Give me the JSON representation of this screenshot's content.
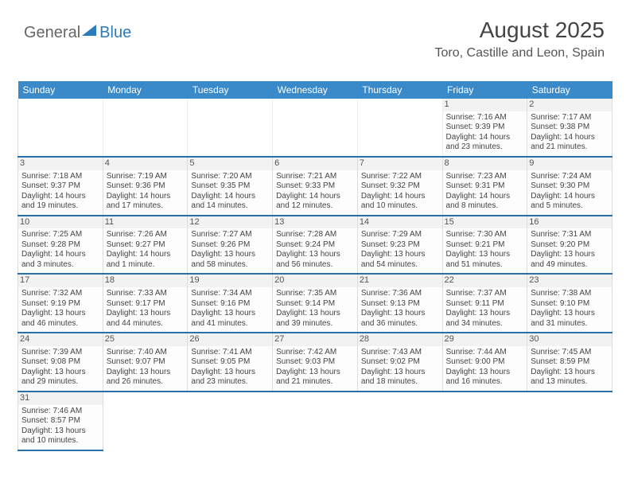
{
  "logo": {
    "text1": "General",
    "text2": "Blue"
  },
  "header": {
    "month": "August 2025",
    "location": "Toro, Castille and Leon, Spain"
  },
  "colors": {
    "header_bg": "#3a89c9",
    "header_text": "#ffffff",
    "row_divider": "#2b6fa8",
    "logo_blue": "#2b7bbf"
  },
  "weekdays": [
    "Sunday",
    "Monday",
    "Tuesday",
    "Wednesday",
    "Thursday",
    "Friday",
    "Saturday"
  ],
  "weeks": [
    [
      null,
      null,
      null,
      null,
      null,
      {
        "n": "1",
        "sr": "Sunrise: 7:16 AM",
        "ss": "Sunset: 9:39 PM",
        "d1": "Daylight: 14 hours",
        "d2": "and 23 minutes."
      },
      {
        "n": "2",
        "sr": "Sunrise: 7:17 AM",
        "ss": "Sunset: 9:38 PM",
        "d1": "Daylight: 14 hours",
        "d2": "and 21 minutes."
      }
    ],
    [
      {
        "n": "3",
        "sr": "Sunrise: 7:18 AM",
        "ss": "Sunset: 9:37 PM",
        "d1": "Daylight: 14 hours",
        "d2": "and 19 minutes."
      },
      {
        "n": "4",
        "sr": "Sunrise: 7:19 AM",
        "ss": "Sunset: 9:36 PM",
        "d1": "Daylight: 14 hours",
        "d2": "and 17 minutes."
      },
      {
        "n": "5",
        "sr": "Sunrise: 7:20 AM",
        "ss": "Sunset: 9:35 PM",
        "d1": "Daylight: 14 hours",
        "d2": "and 14 minutes."
      },
      {
        "n": "6",
        "sr": "Sunrise: 7:21 AM",
        "ss": "Sunset: 9:33 PM",
        "d1": "Daylight: 14 hours",
        "d2": "and 12 minutes."
      },
      {
        "n": "7",
        "sr": "Sunrise: 7:22 AM",
        "ss": "Sunset: 9:32 PM",
        "d1": "Daylight: 14 hours",
        "d2": "and 10 minutes."
      },
      {
        "n": "8",
        "sr": "Sunrise: 7:23 AM",
        "ss": "Sunset: 9:31 PM",
        "d1": "Daylight: 14 hours",
        "d2": "and 8 minutes."
      },
      {
        "n": "9",
        "sr": "Sunrise: 7:24 AM",
        "ss": "Sunset: 9:30 PM",
        "d1": "Daylight: 14 hours",
        "d2": "and 5 minutes."
      }
    ],
    [
      {
        "n": "10",
        "sr": "Sunrise: 7:25 AM",
        "ss": "Sunset: 9:28 PM",
        "d1": "Daylight: 14 hours",
        "d2": "and 3 minutes."
      },
      {
        "n": "11",
        "sr": "Sunrise: 7:26 AM",
        "ss": "Sunset: 9:27 PM",
        "d1": "Daylight: 14 hours",
        "d2": "and 1 minute."
      },
      {
        "n": "12",
        "sr": "Sunrise: 7:27 AM",
        "ss": "Sunset: 9:26 PM",
        "d1": "Daylight: 13 hours",
        "d2": "and 58 minutes."
      },
      {
        "n": "13",
        "sr": "Sunrise: 7:28 AM",
        "ss": "Sunset: 9:24 PM",
        "d1": "Daylight: 13 hours",
        "d2": "and 56 minutes."
      },
      {
        "n": "14",
        "sr": "Sunrise: 7:29 AM",
        "ss": "Sunset: 9:23 PM",
        "d1": "Daylight: 13 hours",
        "d2": "and 54 minutes."
      },
      {
        "n": "15",
        "sr": "Sunrise: 7:30 AM",
        "ss": "Sunset: 9:21 PM",
        "d1": "Daylight: 13 hours",
        "d2": "and 51 minutes."
      },
      {
        "n": "16",
        "sr": "Sunrise: 7:31 AM",
        "ss": "Sunset: 9:20 PM",
        "d1": "Daylight: 13 hours",
        "d2": "and 49 minutes."
      }
    ],
    [
      {
        "n": "17",
        "sr": "Sunrise: 7:32 AM",
        "ss": "Sunset: 9:19 PM",
        "d1": "Daylight: 13 hours",
        "d2": "and 46 minutes."
      },
      {
        "n": "18",
        "sr": "Sunrise: 7:33 AM",
        "ss": "Sunset: 9:17 PM",
        "d1": "Daylight: 13 hours",
        "d2": "and 44 minutes."
      },
      {
        "n": "19",
        "sr": "Sunrise: 7:34 AM",
        "ss": "Sunset: 9:16 PM",
        "d1": "Daylight: 13 hours",
        "d2": "and 41 minutes."
      },
      {
        "n": "20",
        "sr": "Sunrise: 7:35 AM",
        "ss": "Sunset: 9:14 PM",
        "d1": "Daylight: 13 hours",
        "d2": "and 39 minutes."
      },
      {
        "n": "21",
        "sr": "Sunrise: 7:36 AM",
        "ss": "Sunset: 9:13 PM",
        "d1": "Daylight: 13 hours",
        "d2": "and 36 minutes."
      },
      {
        "n": "22",
        "sr": "Sunrise: 7:37 AM",
        "ss": "Sunset: 9:11 PM",
        "d1": "Daylight: 13 hours",
        "d2": "and 34 minutes."
      },
      {
        "n": "23",
        "sr": "Sunrise: 7:38 AM",
        "ss": "Sunset: 9:10 PM",
        "d1": "Daylight: 13 hours",
        "d2": "and 31 minutes."
      }
    ],
    [
      {
        "n": "24",
        "sr": "Sunrise: 7:39 AM",
        "ss": "Sunset: 9:08 PM",
        "d1": "Daylight: 13 hours",
        "d2": "and 29 minutes."
      },
      {
        "n": "25",
        "sr": "Sunrise: 7:40 AM",
        "ss": "Sunset: 9:07 PM",
        "d1": "Daylight: 13 hours",
        "d2": "and 26 minutes."
      },
      {
        "n": "26",
        "sr": "Sunrise: 7:41 AM",
        "ss": "Sunset: 9:05 PM",
        "d1": "Daylight: 13 hours",
        "d2": "and 23 minutes."
      },
      {
        "n": "27",
        "sr": "Sunrise: 7:42 AM",
        "ss": "Sunset: 9:03 PM",
        "d1": "Daylight: 13 hours",
        "d2": "and 21 minutes."
      },
      {
        "n": "28",
        "sr": "Sunrise: 7:43 AM",
        "ss": "Sunset: 9:02 PM",
        "d1": "Daylight: 13 hours",
        "d2": "and 18 minutes."
      },
      {
        "n": "29",
        "sr": "Sunrise: 7:44 AM",
        "ss": "Sunset: 9:00 PM",
        "d1": "Daylight: 13 hours",
        "d2": "and 16 minutes."
      },
      {
        "n": "30",
        "sr": "Sunrise: 7:45 AM",
        "ss": "Sunset: 8:59 PM",
        "d1": "Daylight: 13 hours",
        "d2": "and 13 minutes."
      }
    ],
    [
      {
        "n": "31",
        "sr": "Sunrise: 7:46 AM",
        "ss": "Sunset: 8:57 PM",
        "d1": "Daylight: 13 hours",
        "d2": "and 10 minutes."
      },
      null,
      null,
      null,
      null,
      null,
      null
    ]
  ]
}
